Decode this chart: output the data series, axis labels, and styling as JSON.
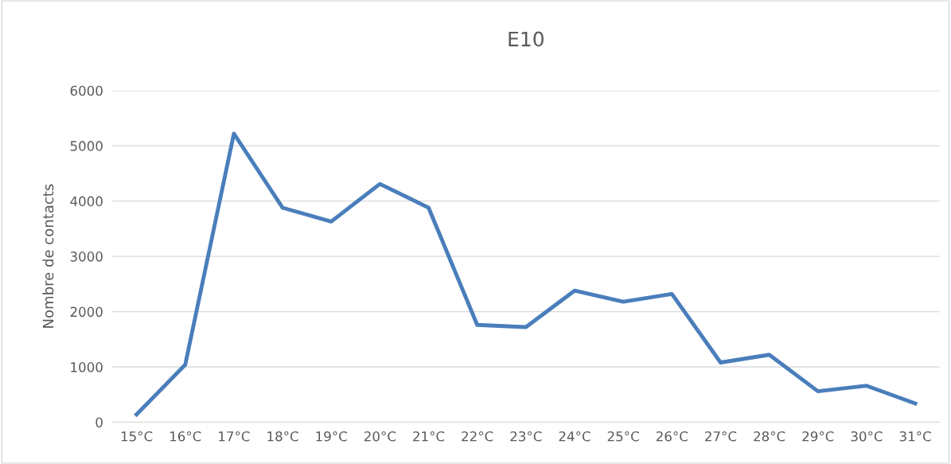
{
  "chart_data": {
    "type": "line",
    "title": "E10",
    "ylabel": "Nombre de contacts",
    "categories": [
      "15°C",
      "16°C",
      "17°C",
      "18°C",
      "19°C",
      "20°C",
      "21°C",
      "22°C",
      "23°C",
      "24°C",
      "25°C",
      "26°C",
      "27°C",
      "28°C",
      "29°C",
      "30°C",
      "31°C"
    ],
    "series": [
      {
        "color": "#4a7ebb",
        "values": [
          140,
          1040,
          5220,
          3880,
          3630,
          4310,
          3880,
          1760,
          1720,
          2380,
          2180,
          2320,
          1080,
          1220,
          560,
          660,
          340
        ]
      }
    ],
    "ylim": [
      0,
      6000
    ],
    "yticks": [
      0,
      1000,
      2000,
      3000,
      4000,
      5000,
      6000
    ],
    "grid": "y",
    "legend": false,
    "marker": "none",
    "line_style": "solid"
  }
}
